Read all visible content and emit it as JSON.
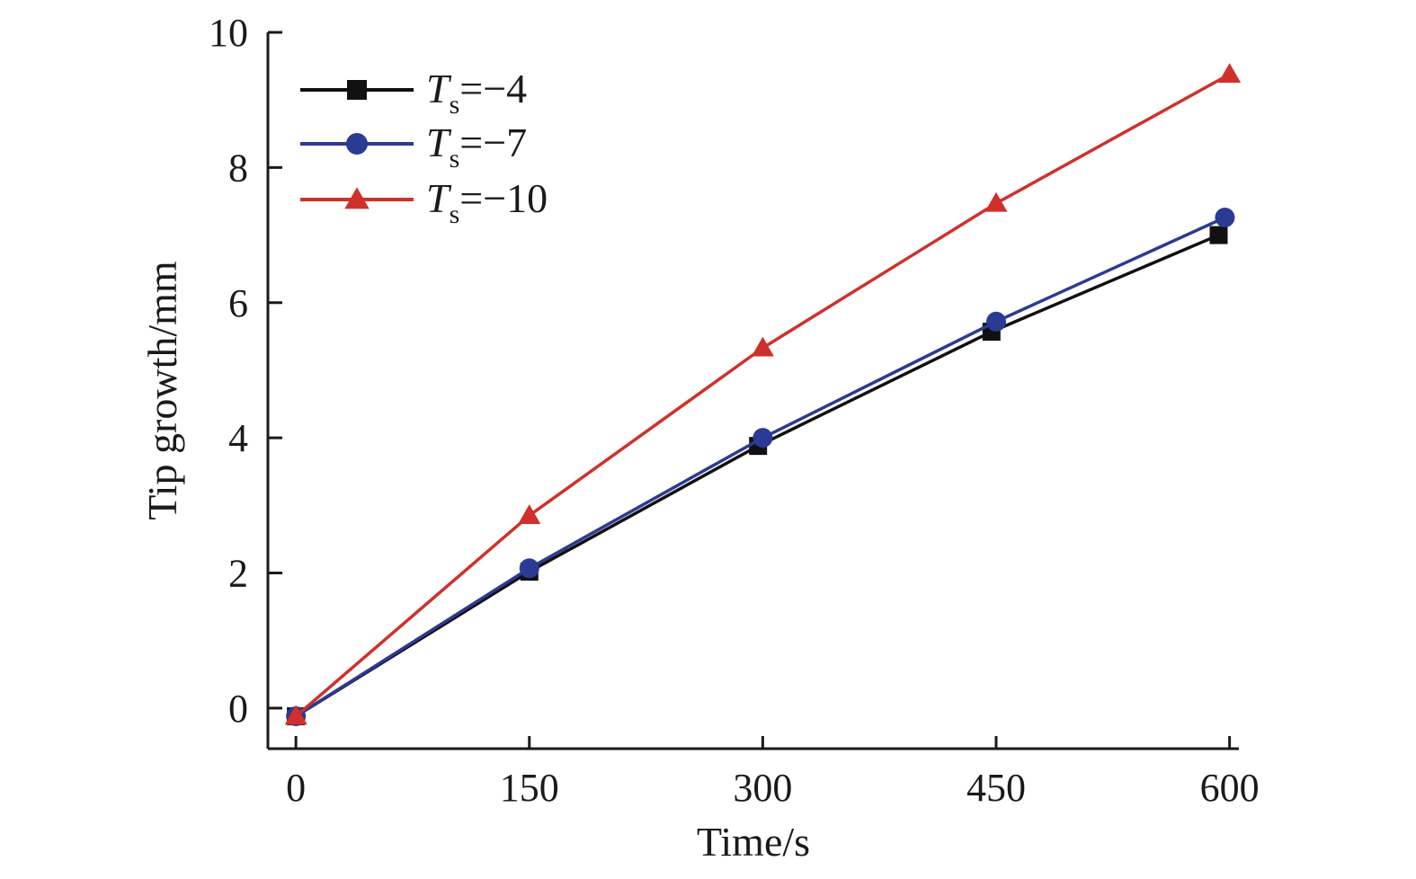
{
  "chart_data": {
    "type": "line",
    "title": "",
    "xlabel": "Time/s",
    "ylabel": "Tip growth/mm",
    "x": [
      0,
      150,
      300,
      450,
      600
    ],
    "xlim": [
      -18,
      606
    ],
    "ylim": [
      -0.6,
      10
    ],
    "xticks": [
      0,
      150,
      300,
      450,
      600
    ],
    "yticks": [
      0,
      2,
      4,
      6,
      8,
      10
    ],
    "legend_position": "top-left",
    "grid": false,
    "series": [
      {
        "name": "Ts=−4",
        "symbol": "T",
        "subscript": "s",
        "value": "=−4",
        "color": "#111111",
        "marker": "square",
        "x": [
          0,
          150,
          297,
          447,
          593
        ],
        "values": [
          -0.12,
          2.02,
          3.88,
          5.57,
          7.0
        ]
      },
      {
        "name": "Ts=−7",
        "symbol": "T",
        "subscript": "s",
        "value": "=−7",
        "color": "#2b3a93",
        "marker": "circle",
        "x": [
          0,
          150,
          300,
          450,
          597
        ],
        "values": [
          -0.12,
          2.07,
          4.0,
          5.72,
          7.26
        ]
      },
      {
        "name": "Ts=−10",
        "symbol": "T",
        "subscript": "s",
        "value": "=−10",
        "color": "#d0302b",
        "marker": "triangle",
        "x": [
          0,
          150,
          300,
          450,
          600
        ],
        "values": [
          -0.12,
          2.85,
          5.33,
          7.47,
          9.38
        ]
      }
    ]
  }
}
